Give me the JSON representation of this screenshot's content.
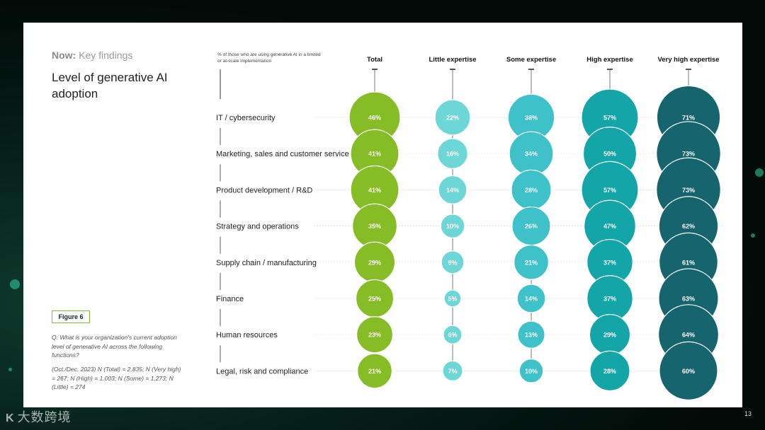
{
  "header": {
    "kicker_bold": "Now:",
    "kicker_rest": " Key findings",
    "title": "Level of generative AI adoption"
  },
  "figure_label": "Figure 6",
  "question": "Q: What is your organization's current adoption level of generative AI across the following functions?",
  "base_note": "(Oct./Dec. 2023) N (Total) = 2,835; N (Very high) = 267; N (High) = 1,003; N (Some) = 1,273; N (Little) = 274",
  "measure_note": "% of those who are using generative AI in a limited or at-scale implementation",
  "page_number": "13",
  "watermark": {
    "logo": "K",
    "text": "大数跨境"
  },
  "chart_data": {
    "type": "bubble",
    "unit": "%",
    "categories": [
      "IT / cybersecurity",
      "Marketing, sales and customer service",
      "Product development / R&D",
      "Strategy and operations",
      "Supply chain / manufacturing",
      "Finance",
      "Human resources",
      "Legal, risk and compliance"
    ],
    "series": [
      {
        "name": "Total",
        "color": "#86bc25",
        "values": [
          46,
          41,
          41,
          35,
          29,
          25,
          23,
          21
        ]
      },
      {
        "name": "Little expertise",
        "color": "#6dd6d6",
        "values": [
          22,
          16,
          14,
          10,
          9,
          5,
          6,
          7
        ]
      },
      {
        "name": "Some expertise",
        "color": "#3fc1c9",
        "values": [
          38,
          34,
          28,
          26,
          21,
          14,
          13,
          10
        ]
      },
      {
        "name": "High expertise",
        "color": "#13a5a8",
        "values": [
          57,
          50,
          57,
          47,
          37,
          37,
          29,
          28
        ]
      },
      {
        "name": "Very high expertise",
        "color": "#16646e",
        "values": [
          71,
          73,
          73,
          62,
          61,
          63,
          64,
          60
        ]
      }
    ],
    "grid": false,
    "legend": "column headers"
  }
}
